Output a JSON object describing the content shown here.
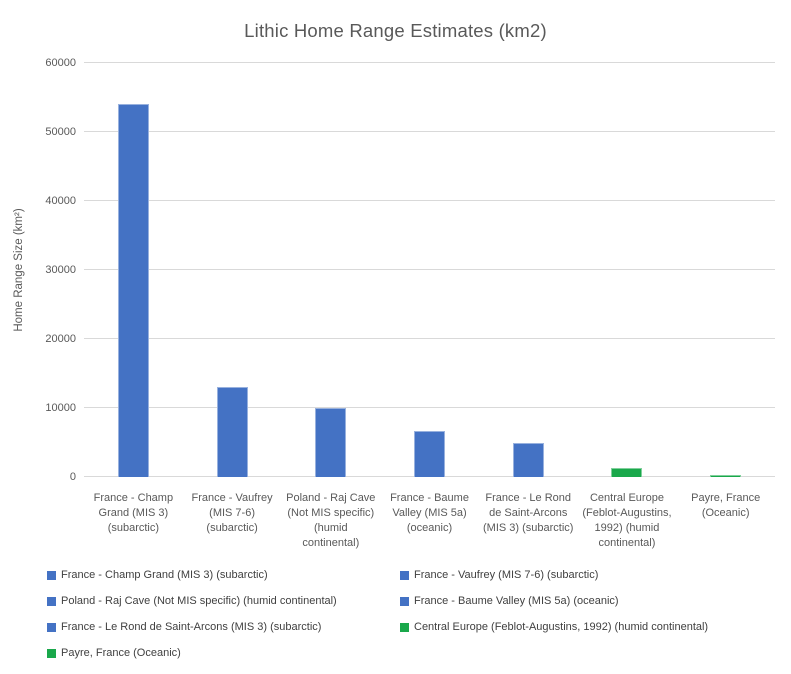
{
  "title": "Lithic Home Range Estimates (km2)",
  "colors": {
    "series_blue": "#4472C4",
    "series_green": "#1AA84B",
    "gridline": "#D9D9D9",
    "title_text": "#595959",
    "axis_text": "#595959",
    "legend_text": "#404040"
  },
  "chart_data": {
    "type": "bar",
    "title": "Lithic Home Range Estimates (km2)",
    "xlabel": "",
    "ylabel": "Home Range Size (km²)",
    "ylim": [
      0,
      60000
    ],
    "ytick_step": 10000,
    "ytick_labels": [
      "0",
      "10000",
      "20000",
      "30000",
      "40000",
      "50000",
      "60000"
    ],
    "grid": true,
    "legend_position": "bottom",
    "categories": [
      "France - Champ Grand (MIS 3) (subarctic)",
      "France - Vaufrey (MIS 7-6) (subarctic)",
      "Poland - Raj Cave (Not MIS specific) (humid continental)",
      "France - Baume Valley (MIS 5a) (oceanic)",
      "France - Le Rond de Saint-Arcons (MIS 3) (subarctic)",
      "Central Europe (Feblot-Augustins, 1992) (humid continental)",
      "Payre, France (Oceanic)"
    ],
    "category_label_lines": [
      [
        "France - Champ",
        "Grand (MIS 3)",
        "(subarctic)"
      ],
      [
        "France - Vaufrey",
        "(MIS 7-6)",
        "(subarctic)"
      ],
      [
        "Poland - Raj Cave",
        "(Not MIS specific)",
        "(humid",
        "continental)"
      ],
      [
        "France - Baume",
        "Valley (MIS 5a)",
        "(oceanic)"
      ],
      [
        "France - Le Rond",
        "de Saint-Arcons",
        "(MIS 3) (subarctic)"
      ],
      [
        "Central Europe",
        "(Feblot-Augustins,",
        "1992) (humid",
        "continental)"
      ],
      [
        "Payre, France",
        "(Oceanic)"
      ]
    ],
    "values": [
      54000,
      13000,
      10000,
      6700,
      5000,
      1300,
      350
    ],
    "bar_colors": [
      "#4472C4",
      "#4472C4",
      "#4472C4",
      "#4472C4",
      "#4472C4",
      "#1AA84B",
      "#1AA84B"
    ],
    "legend": [
      {
        "label": "France - Champ Grand (MIS 3) (subarctic)",
        "color": "#4472C4"
      },
      {
        "label": "France - Vaufrey (MIS 7-6) (subarctic)",
        "color": "#4472C4"
      },
      {
        "label": "Poland - Raj Cave (Not MIS specific) (humid continental)",
        "color": "#4472C4"
      },
      {
        "label": "France - Baume Valley (MIS 5a) (oceanic)",
        "color": "#4472C4"
      },
      {
        "label": "France - Le Rond de Saint-Arcons (MIS 3) (subarctic)",
        "color": "#4472C4"
      },
      {
        "label": "Central Europe (Feblot-Augustins, 1992) (humid continental)",
        "color": "#1AA84B"
      },
      {
        "label": "Payre, France (Oceanic)",
        "color": "#1AA84B"
      }
    ]
  }
}
